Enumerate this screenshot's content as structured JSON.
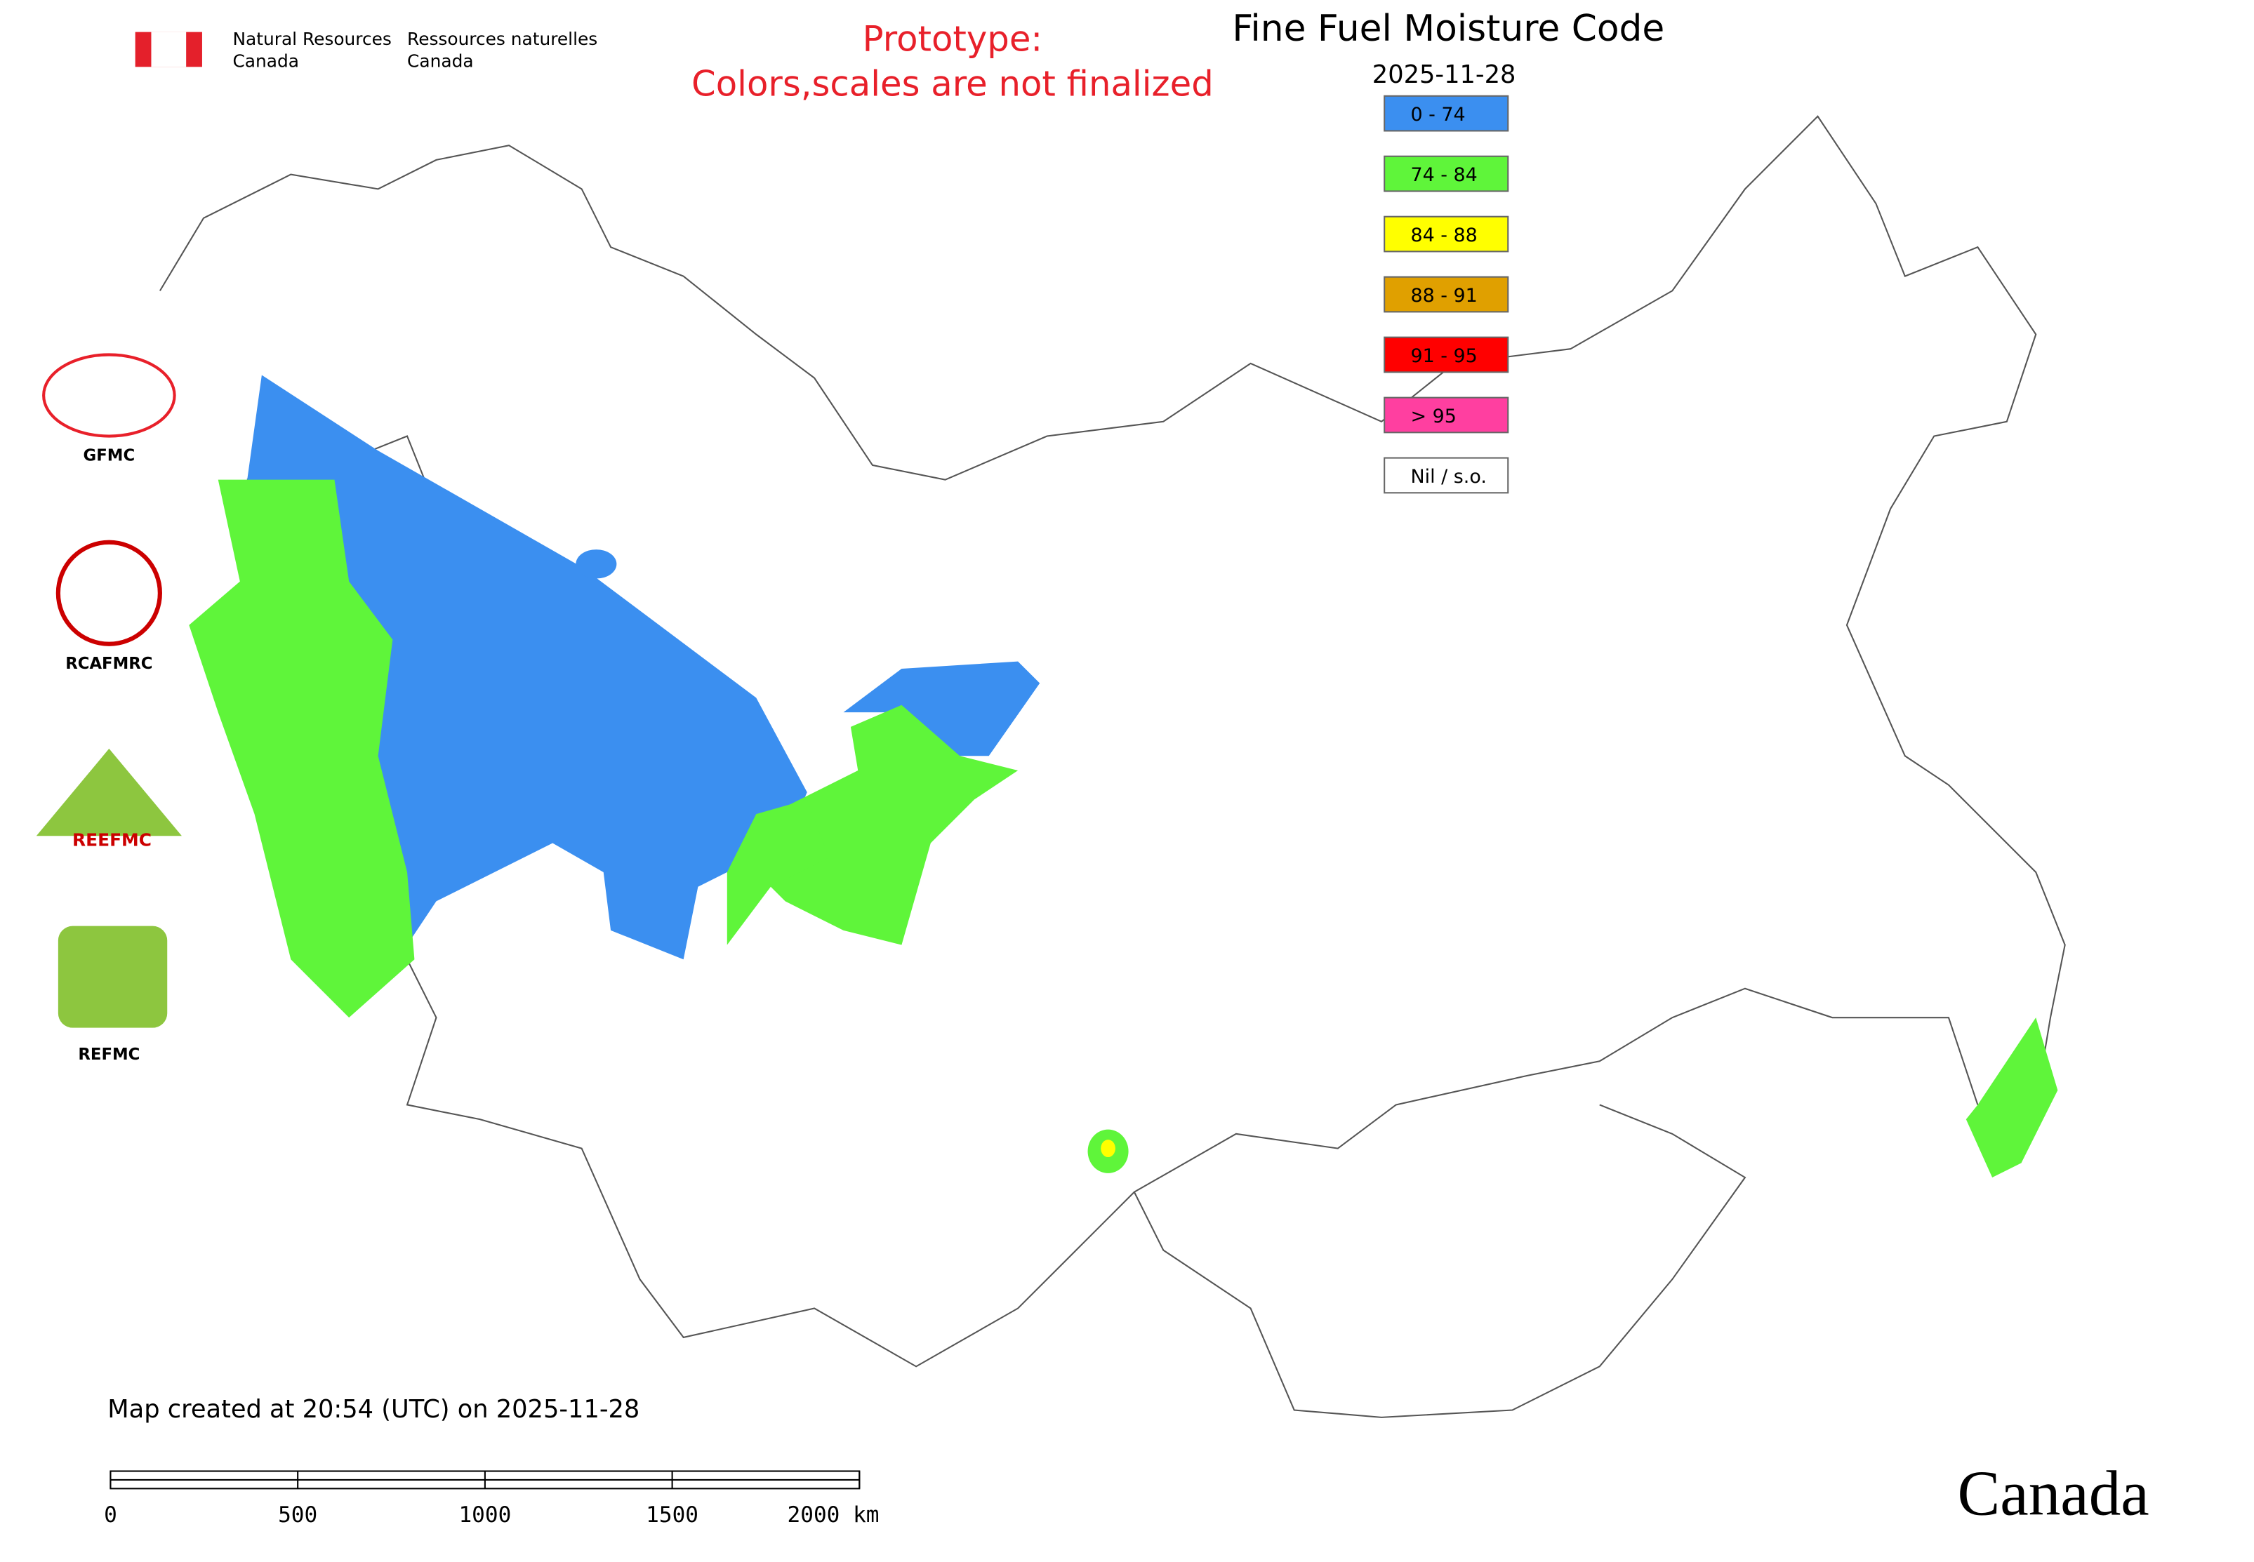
{
  "header": {
    "nrcan_en": [
      "Natural Resources",
      "Canada"
    ],
    "nrcan_fr": [
      "Ressources naturelles",
      "Canada"
    ],
    "prototype": [
      "Prototype:",
      "Colors,scales are not finalized"
    ],
    "title": "Fine Fuel Moisture Code",
    "date": "2025-11-28"
  },
  "legend": [
    {
      "label": "0 - 74",
      "color": "#3b8ff0"
    },
    {
      "label": "74 - 84",
      "color": "#5ff53a"
    },
    {
      "label": "84 - 88",
      "color": "#ffff00"
    },
    {
      "label": "88 - 91",
      "color": "#e0a000"
    },
    {
      "label": "91 - 95",
      "color": "#ff0000"
    },
    {
      "label": "> 95",
      "color": "#ff3fa0"
    },
    {
      "label": "Nil / s.o.",
      "color": "#ffffff"
    }
  ],
  "logos": [
    "GFMC",
    "RCAFMRC",
    "REEFMC",
    "REFMC"
  ],
  "footer": {
    "created": "Map created at 20:54 (UTC) on 2025-11-28",
    "scale": [
      "0",
      "500",
      "1000",
      "1500",
      "2000 km"
    ],
    "wordmark": "Canada"
  }
}
